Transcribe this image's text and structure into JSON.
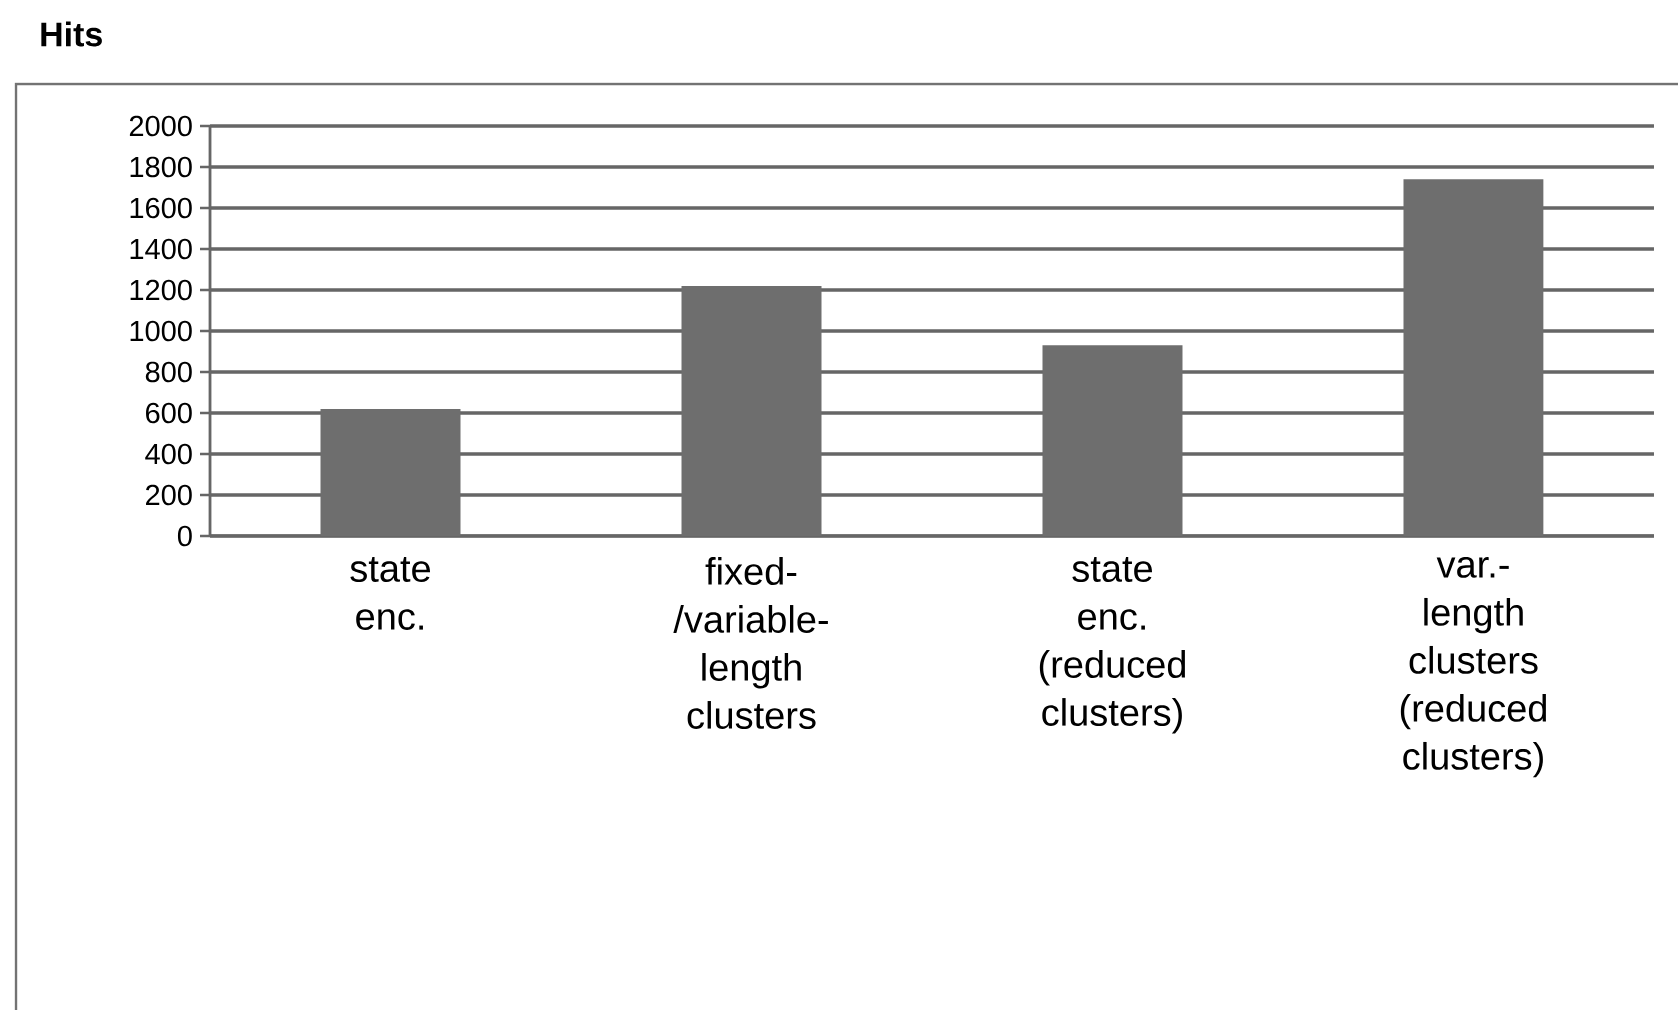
{
  "chart_data": {
    "type": "bar",
    "title": "Hits",
    "categories": [
      "state enc.",
      "fixed-/variable-length clusters",
      "state enc. (reduced clusters)",
      "var.-length clusters (reduced clusters)"
    ],
    "values": [
      620,
      1220,
      930,
      1740
    ],
    "color": "#6e6e6e",
    "ylim": [
      0,
      2000
    ],
    "yticks": [
      0,
      200,
      400,
      600,
      800,
      1000,
      1200,
      1400,
      1600,
      1800,
      2000
    ],
    "grid": "y"
  }
}
